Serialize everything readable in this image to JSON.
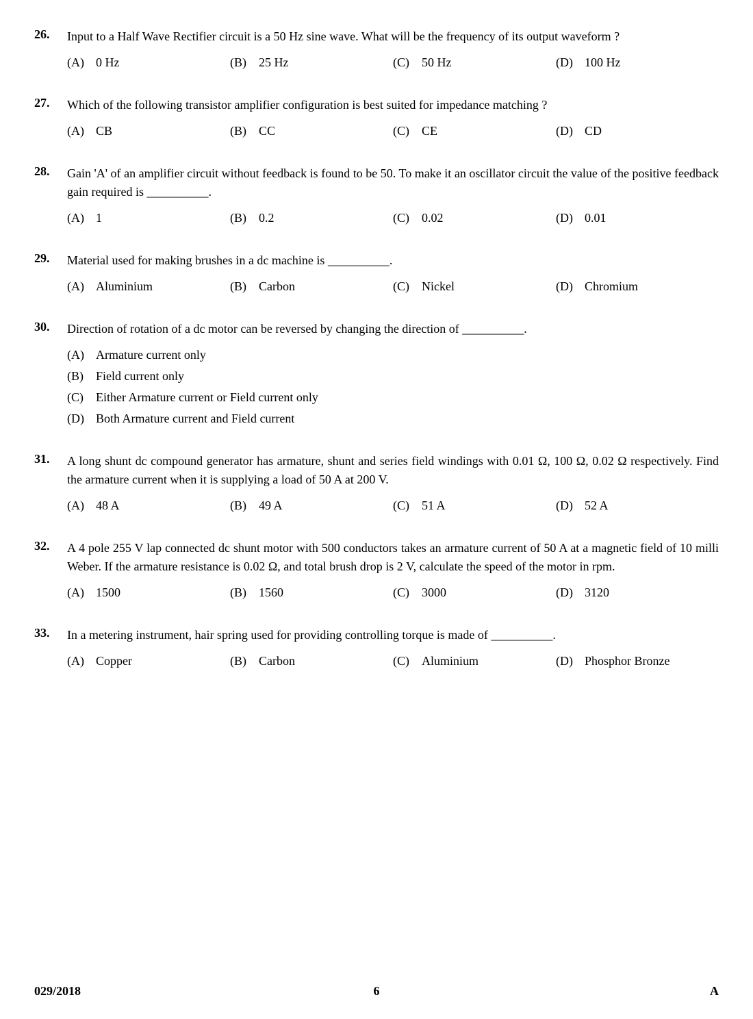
{
  "page": {
    "footer_left": "029/2018",
    "footer_center": "6",
    "footer_right": "A"
  },
  "questions": [
    {
      "num": "26.",
      "text": "Input to a Half Wave Rectifier circuit is a 50 Hz sine wave.  What will be the frequency of its output waveform ?",
      "layout": "row4",
      "options": [
        {
          "label": "(A)",
          "text": "0 Hz"
        },
        {
          "label": "(B)",
          "text": "25 Hz"
        },
        {
          "label": "(C)",
          "text": "50 Hz"
        },
        {
          "label": "(D)",
          "text": "100 Hz"
        }
      ]
    },
    {
      "num": "27.",
      "text": "Which of the following transistor amplifier configuration is best suited for impedance matching ?",
      "layout": "row4",
      "options": [
        {
          "label": "(A)",
          "text": "CB"
        },
        {
          "label": "(B)",
          "text": "CC"
        },
        {
          "label": "(C)",
          "text": "CE"
        },
        {
          "label": "(D)",
          "text": "CD"
        }
      ]
    },
    {
      "num": "28.",
      "text": "Gain 'A' of an amplifier circuit without feedback is found to be 50.  To make it an oscillator circuit the value of the positive feedback gain required is __________.",
      "layout": "row4",
      "options": [
        {
          "label": "(A)",
          "text": "1"
        },
        {
          "label": "(B)",
          "text": "0.2"
        },
        {
          "label": "(C)",
          "text": "0.02"
        },
        {
          "label": "(D)",
          "text": "0.01"
        }
      ]
    },
    {
      "num": "29.",
      "text": "Material used for making brushes in a dc machine is __________.",
      "layout": "row4",
      "options": [
        {
          "label": "(A)",
          "text": "Aluminium"
        },
        {
          "label": "(B)",
          "text": "Carbon"
        },
        {
          "label": "(C)",
          "text": "Nickel"
        },
        {
          "label": "(D)",
          "text": "Chromium"
        }
      ]
    },
    {
      "num": "30.",
      "text": "Direction of rotation of a dc motor can be reversed by changing the direction of __________.",
      "layout": "stack",
      "options": [
        {
          "label": "(A)",
          "text": "Armature current only"
        },
        {
          "label": "(B)",
          "text": "Field current only"
        },
        {
          "label": "(C)",
          "text": "Either Armature current or Field current only"
        },
        {
          "label": "(D)",
          "text": "Both Armature current and Field current"
        }
      ]
    },
    {
      "num": "31.",
      "text": "A long shunt dc compound generator has armature, shunt and series field windings with 0.01 Ω, 100 Ω, 0.02 Ω respectively.  Find the armature current when it is supplying a load of 50 A at 200 V.",
      "layout": "row4",
      "options": [
        {
          "label": "(A)",
          "text": "48 A"
        },
        {
          "label": "(B)",
          "text": "49 A"
        },
        {
          "label": "(C)",
          "text": "51 A"
        },
        {
          "label": "(D)",
          "text": "52 A"
        }
      ]
    },
    {
      "num": "32.",
      "text": "A 4 pole 255 V lap connected dc shunt motor with 500 conductors takes an armature current of 50 A at a magnetic field of 10 milli Weber.  If the armature resistance is 0.02 Ω, and total brush drop is 2 V, calculate the speed of the motor in rpm.",
      "layout": "row4",
      "options": [
        {
          "label": "(A)",
          "text": "1500"
        },
        {
          "label": "(B)",
          "text": "1560"
        },
        {
          "label": "(C)",
          "text": "3000"
        },
        {
          "label": "(D)",
          "text": "3120"
        }
      ]
    },
    {
      "num": "33.",
      "text": "In a metering instrument, hair spring used for providing controlling torque is made of __________.",
      "layout": "row4",
      "options": [
        {
          "label": "(A)",
          "text": "Copper"
        },
        {
          "label": "(B)",
          "text": "Carbon"
        },
        {
          "label": "(C)",
          "text": "Aluminium"
        },
        {
          "label": "(D)",
          "text": "Phosphor Bronze"
        }
      ]
    }
  ]
}
